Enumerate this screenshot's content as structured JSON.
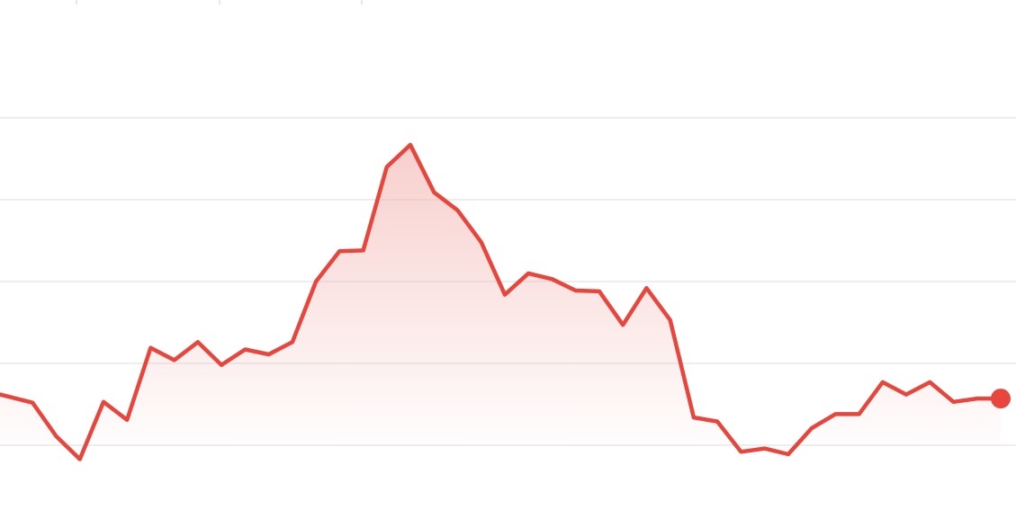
{
  "chart_data": {
    "type": "area",
    "title": "",
    "xlabel": "",
    "ylabel": "",
    "grid": true,
    "legend": "none",
    "x_count": 43,
    "ylim": [
      0,
      4
    ],
    "values": [
      0.62,
      0.52,
      0.11,
      -0.17,
      0.53,
      0.31,
      1.19,
      1.04,
      1.26,
      0.98,
      1.17,
      1.11,
      1.26,
      2.0,
      2.37,
      2.38,
      3.4,
      3.67,
      3.09,
      2.87,
      2.48,
      1.84,
      2.1,
      2.03,
      1.89,
      1.88,
      1.47,
      1.92,
      1.53,
      0.34,
      0.29,
      -0.08,
      -0.04,
      -0.11,
      0.21,
      0.38,
      0.38,
      0.77,
      0.62,
      0.77,
      0.53,
      0.57,
      0.57
    ],
    "colors": {
      "line": "#e8453c",
      "fill_top": "#f0a8a4",
      "grid": "#eeeeee",
      "tick": "#e0e0e0"
    }
  }
}
